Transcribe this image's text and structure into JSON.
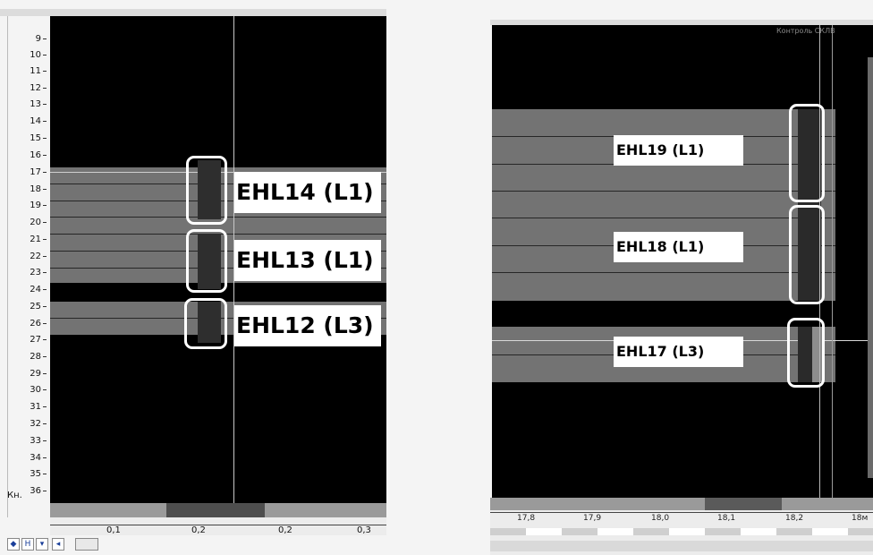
{
  "left": {
    "y_axis_label": "Кн.",
    "y_ticks": [
      "9",
      "10",
      "11",
      "12",
      "13",
      "14",
      "15",
      "16",
      "17",
      "18",
      "19",
      "20",
      "21",
      "22",
      "23",
      "24",
      "25",
      "26",
      "27",
      "28",
      "29",
      "30",
      "31",
      "32",
      "33",
      "34",
      "35",
      "36"
    ],
    "x_ticks": [
      "0,1",
      "0,2",
      "0,2",
      "0,3"
    ],
    "labels": {
      "a": "EHL14 (L1)",
      "b": "EHL13 (L1)",
      "c": "EHL12 (L3)"
    },
    "controls": {
      "fit": "◆",
      "home": "H",
      "down": "▾",
      "left": "◂"
    }
  },
  "right": {
    "header": "Контроль СКЛВ",
    "labels": {
      "a": "EHL19 (L1)",
      "b": "EHL18 (L1)",
      "c": "EHL17 (L3)"
    },
    "x_ticks": [
      "17,8",
      "17,9",
      "18,0",
      "18,1",
      "18,2",
      "18м"
    ]
  }
}
